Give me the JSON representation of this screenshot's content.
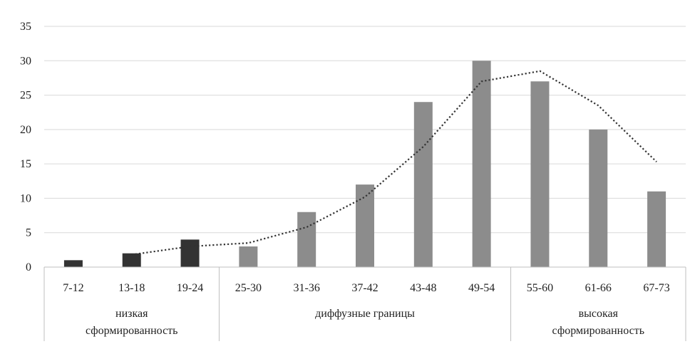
{
  "chart_data": {
    "type": "bar",
    "title": "",
    "xlabel": "",
    "ylabel": "",
    "ylim": [
      0,
      35
    ],
    "yticks": [
      0,
      5,
      10,
      15,
      20,
      25,
      30,
      35
    ],
    "grid": true,
    "legend": "none",
    "categories": [
      "7-12",
      "13-18",
      "19-24",
      "25-30",
      "31-36",
      "37-42",
      "43-48",
      "49-54",
      "55-60",
      "61-66",
      "67-73"
    ],
    "series": [
      {
        "values": [
          1,
          2,
          4,
          3,
          8,
          12,
          24,
          30,
          27,
          20,
          11
        ],
        "bar_colors": [
          "#333333",
          "#333333",
          "#333333",
          "#8c8c8c",
          "#8c8c8c",
          "#8c8c8c",
          "#8c8c8c",
          "#8c8c8c",
          "#8c8c8c",
          "#8c8c8c",
          "#8c8c8c"
        ]
      }
    ],
    "trendline": {
      "style": "dotted",
      "color": "#333333",
      "x_from": "13-18",
      "values": [
        1.8,
        3.0,
        3.5,
        5.8,
        10.2,
        17.5,
        27.0,
        28.5,
        23.5,
        15.3
      ]
    },
    "groups": [
      {
        "label": "низкая\nсформированность",
        "lines": [
          "низкая",
          "сформированность"
        ],
        "categories": [
          "7-12",
          "13-18",
          "19-24"
        ]
      },
      {
        "label": "диффузные границы",
        "lines": [
          "диффузные границы"
        ],
        "categories": [
          "25-30",
          "31-36",
          "37-42",
          "43-48",
          "49-54"
        ]
      },
      {
        "label": "высокая\nсформированность",
        "lines": [
          "высокая",
          "сформированность"
        ],
        "categories": [
          "55-60",
          "61-66",
          "67-73"
        ]
      }
    ],
    "colors": {
      "low_bar": "#333333",
      "bar": "#8c8c8c",
      "grid": "#d9d9d9",
      "axis": "#bfbfbf"
    }
  }
}
